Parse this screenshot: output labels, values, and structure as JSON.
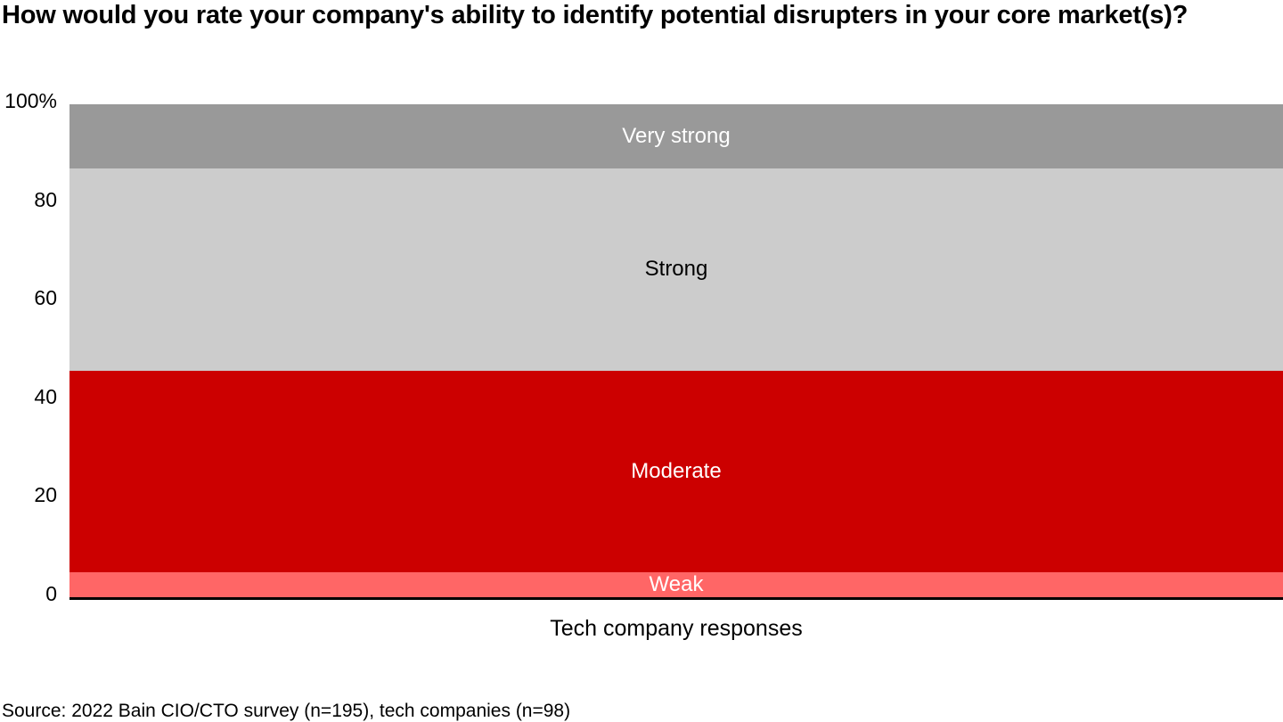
{
  "title": "How would you rate your company's ability to identify potential disrupters in your core market(s)?",
  "source": "Source: 2022 Bain CIO/CTO survey (n=195), tech companies (n=98)",
  "colors": {
    "weak": "#ff6666",
    "moderate": "#cc0000",
    "strong": "#cccccc",
    "very_strong": "#999999",
    "axis": "#000000"
  },
  "chart_data": {
    "type": "bar",
    "stacking": "percent",
    "orientation": "vertical",
    "title": "How would you rate your company's ability to identify potential disrupters in your core market(s)?",
    "categories": [
      "Tech company responses"
    ],
    "xlabel": "Tech company responses",
    "ylabel": "",
    "ylim": [
      0,
      100
    ],
    "yticks": [
      {
        "value": 0,
        "label": "0"
      },
      {
        "value": 20,
        "label": "20"
      },
      {
        "value": 40,
        "label": "40"
      },
      {
        "value": 60,
        "label": "60"
      },
      {
        "value": 80,
        "label": "80"
      },
      {
        "value": 100,
        "label": "100%"
      }
    ],
    "grid": false,
    "legend": "none-labels-inside-segments",
    "series": [
      {
        "name": "Weak",
        "values": [
          5
        ],
        "color": "#ff6666",
        "label_color": "#ffffff"
      },
      {
        "name": "Moderate",
        "values": [
          41
        ],
        "color": "#cc0000",
        "label_color": "#ffffff"
      },
      {
        "name": "Strong",
        "values": [
          41
        ],
        "color": "#cccccc",
        "label_color": "#000000"
      },
      {
        "name": "Very strong",
        "values": [
          13
        ],
        "color": "#999999",
        "label_color": "#ffffff"
      }
    ]
  }
}
